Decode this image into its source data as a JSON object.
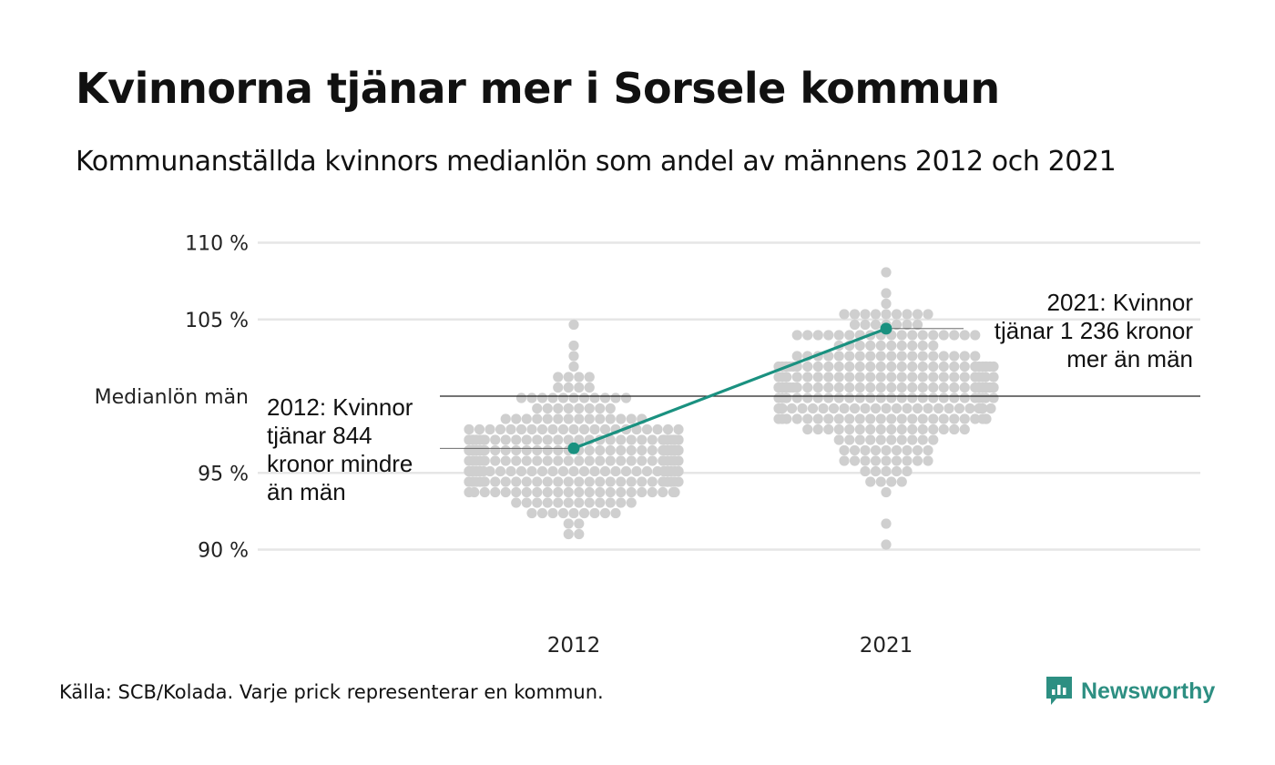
{
  "title": "Kvinnorna tjänar mer i Sorsele kommun",
  "subtitle": "Kommunanställda kvinnors medianlön som andel av männens 2012 och 2021",
  "source": "Källa: SCB/Kolada. Varje prick representerar en kommun.",
  "brand": "Newsworthy",
  "colors": {
    "highlight": "#1a9180",
    "dots": "#cfcfcf",
    "grid": "#e6e6e6",
    "reference": "#222222"
  },
  "chart_data": {
    "type": "scatter",
    "categories": [
      "2012",
      "2021"
    ],
    "y_unit": "%",
    "ylim": [
      86,
      112
    ],
    "yticks": [
      {
        "value": 90,
        "label": "90 %"
      },
      {
        "value": 95,
        "label": "95 %"
      },
      {
        "value": 105,
        "label": "105 %"
      },
      {
        "value": 110,
        "label": "110 %"
      }
    ],
    "reference_line": {
      "value": 100,
      "label": "Medianlön män"
    },
    "highlight": {
      "values": [
        96.6,
        104.4
      ],
      "annotations": [
        [
          "2012: Kvinnor",
          "tjänar 844",
          "kronor mindre",
          "än män"
        ],
        [
          "2021: Kvinnor",
          "tjänar 1 236 kronor",
          "mer än män"
        ]
      ]
    },
    "grid": true,
    "legend": "none"
  }
}
